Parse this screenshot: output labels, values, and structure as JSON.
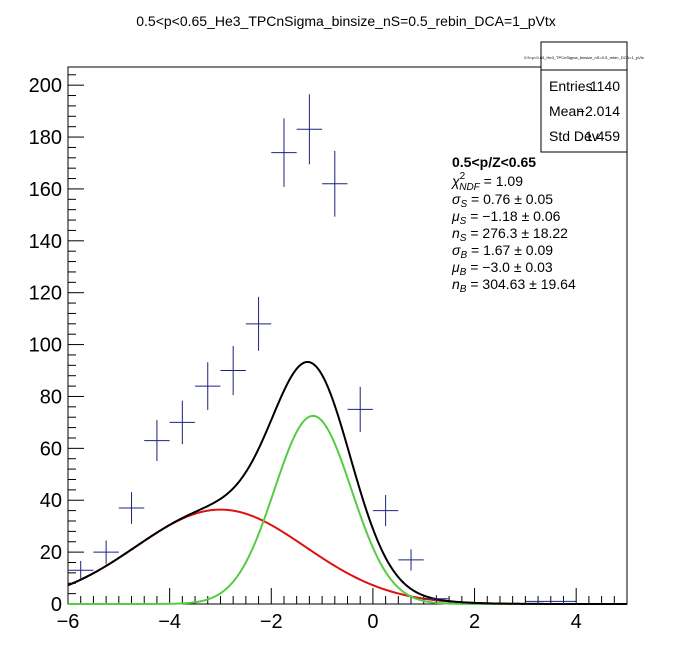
{
  "chart_data": {
    "type": "line",
    "title": "0.5<p<0.65_He3_TPCnSigma_binsize_nS=0.5_rebin_DCA=1_pVtx",
    "xlim": [
      -6,
      5
    ],
    "ylim": [
      0,
      207
    ],
    "x_ticks": [
      -6,
      -4,
      -2,
      0,
      2,
      4
    ],
    "x_tick_labels": [
      "−6",
      "−4",
      "−2",
      "0",
      "2",
      "4"
    ],
    "y_ticks": [
      0,
      20,
      40,
      60,
      80,
      100,
      120,
      140,
      160,
      180,
      200
    ],
    "y_tick_labels": [
      "0",
      "20",
      "40",
      "60",
      "80",
      "100",
      "120",
      "140",
      "160",
      "180",
      "200"
    ],
    "bin_width": 0.5,
    "data_points": [
      {
        "x": -5.75,
        "y": 13,
        "err": 3.6
      },
      {
        "x": -5.25,
        "y": 20,
        "err": 4.5
      },
      {
        "x": -4.75,
        "y": 37,
        "err": 6.1
      },
      {
        "x": -4.25,
        "y": 63,
        "err": 7.9
      },
      {
        "x": -3.75,
        "y": 70,
        "err": 8.4
      },
      {
        "x": -3.25,
        "y": 84,
        "err": 9.2
      },
      {
        "x": -2.75,
        "y": 90,
        "err": 9.5
      },
      {
        "x": -2.25,
        "y": 108,
        "err": 10.4
      },
      {
        "x": -1.75,
        "y": 174,
        "err": 13.2
      },
      {
        "x": -1.25,
        "y": 183,
        "err": 13.5
      },
      {
        "x": -0.75,
        "y": 162,
        "err": 12.7
      },
      {
        "x": -0.25,
        "y": 75,
        "err": 8.7
      },
      {
        "x": 0.25,
        "y": 36,
        "err": 6.0
      },
      {
        "x": 0.75,
        "y": 17,
        "err": 4.1
      },
      {
        "x": 1.25,
        "y": 2,
        "err": 1.4
      },
      {
        "x": 3.25,
        "y": 1,
        "err": 1.0
      },
      {
        "x": 3.75,
        "y": 1,
        "err": 1.0
      }
    ],
    "series": [
      {
        "component": "total",
        "color": "#000000"
      },
      {
        "component": "signal",
        "color": "#55cc44",
        "n": 276.3,
        "mu": -1.18,
        "sigma": 0.76
      },
      {
        "component": "background",
        "color": "#dd1111",
        "n": 304.63,
        "mu": -3.0,
        "sigma": 1.67
      }
    ],
    "marker_color": "#1a237e"
  },
  "stats_box": {
    "title": "0.5<p<0.65_He3_TPCnSigma_binsize_nS=0.5_rebin_DCA=1_pVtx",
    "rows": [
      {
        "label": "Entries",
        "value": "1140"
      },
      {
        "label": "Mean",
        "value": "−2.014"
      },
      {
        "label": "Std Dev",
        "value": "1.459"
      }
    ]
  },
  "fit_legend": {
    "header": "0.5<p/Z<0.65",
    "chi2": {
      "sym": "χ",
      "sup": "2",
      "sub": "NDF",
      "value": " = 1.09"
    },
    "params": [
      {
        "sym": "σ",
        "sub": "S",
        "value": " = 0.76 ± 0.05"
      },
      {
        "sym": "μ",
        "sub": "S",
        "value": " = −1.18 ± 0.06"
      },
      {
        "sym": "n",
        "sub": "S",
        "value": " = 276.3 ± 18.22"
      },
      {
        "sym": "σ",
        "sub": "B",
        "value": " = 1.67 ± 0.09"
      },
      {
        "sym": "μ",
        "sub": "B",
        "value": " = −3.0 ± 0.03"
      },
      {
        "sym": "n",
        "sub": "B",
        "value": " = 304.63 ± 19.64"
      }
    ]
  }
}
